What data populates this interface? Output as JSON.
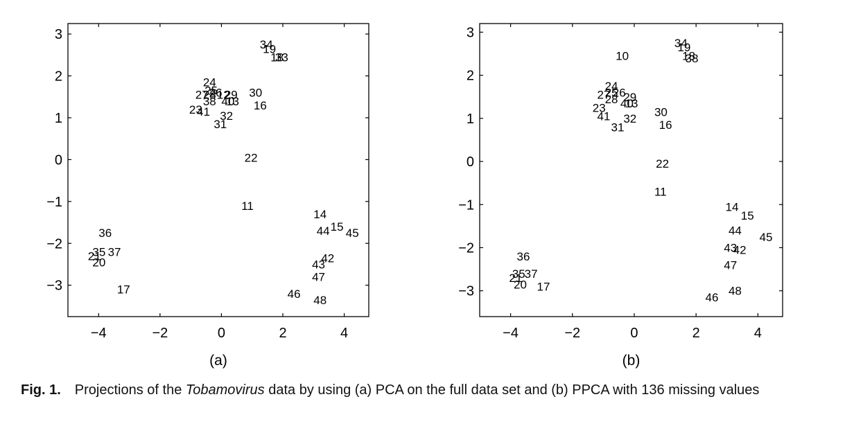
{
  "caption": {
    "label": "Fig. 1.",
    "text_before": "Projections of the ",
    "text_italic": "Tobamovirus",
    "text_after": " data by using (a) PCA on the full data set and (b) PPCA with 136 missing values"
  },
  "chart_data": [
    {
      "type": "scatter",
      "panel_label": "(a)",
      "xlim": [
        -5,
        4.8
      ],
      "ylim": [
        -3.75,
        3.25
      ],
      "xticks": [
        -4,
        -2,
        0,
        2,
        4
      ],
      "yticks": [
        -3,
        -2,
        -1,
        0,
        1,
        2,
        3
      ],
      "xtick_labels": [
        "−4",
        "−2",
        "0",
        "2",
        "4"
      ],
      "ytick_labels": [
        "−3",
        "−2",
        "−1",
        "0",
        "1",
        "2",
        "3"
      ],
      "grid": false,
      "marker": "text-label",
      "points": [
        {
          "label": "34",
          "x": 1.25,
          "y": 2.75
        },
        {
          "label": "19",
          "x": 1.35,
          "y": 2.65
        },
        {
          "label": "18",
          "x": 1.6,
          "y": 2.45
        },
        {
          "label": "33",
          "x": 1.75,
          "y": 2.45
        },
        {
          "label": "24",
          "x": -0.6,
          "y": 1.85
        },
        {
          "label": "25",
          "x": -0.55,
          "y": 1.65
        },
        {
          "label": "26",
          "x": -0.4,
          "y": 1.6
        },
        {
          "label": "27",
          "x": -0.85,
          "y": 1.55
        },
        {
          "label": "28",
          "x": -0.6,
          "y": 1.55
        },
        {
          "label": "12",
          "x": -0.15,
          "y": 1.55
        },
        {
          "label": "29",
          "x": 0.1,
          "y": 1.55
        },
        {
          "label": "38",
          "x": -0.6,
          "y": 1.4
        },
        {
          "label": "40",
          "x": 0.0,
          "y": 1.4
        },
        {
          "label": "13",
          "x": 0.15,
          "y": 1.4
        },
        {
          "label": "30",
          "x": 0.9,
          "y": 1.6
        },
        {
          "label": "16",
          "x": 1.05,
          "y": 1.3
        },
        {
          "label": "23",
          "x": -1.05,
          "y": 1.2
        },
        {
          "label": "41",
          "x": -0.8,
          "y": 1.15
        },
        {
          "label": "32",
          "x": -0.05,
          "y": 1.05
        },
        {
          "label": "31",
          "x": -0.25,
          "y": 0.85
        },
        {
          "label": "22",
          "x": 0.75,
          "y": 0.05
        },
        {
          "label": "11",
          "x": 0.65,
          "y": -1.1
        },
        {
          "label": "14",
          "x": 3.0,
          "y": -1.3
        },
        {
          "label": "44",
          "x": 3.1,
          "y": -1.7
        },
        {
          "label": "15",
          "x": 3.55,
          "y": -1.6
        },
        {
          "label": "45",
          "x": 4.05,
          "y": -1.75
        },
        {
          "label": "42",
          "x": 3.25,
          "y": -2.35
        },
        {
          "label": "43",
          "x": 2.95,
          "y": -2.5
        },
        {
          "label": "47",
          "x": 2.95,
          "y": -2.8
        },
        {
          "label": "46",
          "x": 2.15,
          "y": -3.2
        },
        {
          "label": "48",
          "x": 3.0,
          "y": -3.35
        },
        {
          "label": "36",
          "x": -4.0,
          "y": -1.75
        },
        {
          "label": "35",
          "x": -4.2,
          "y": -2.2
        },
        {
          "label": "37",
          "x": -3.7,
          "y": -2.2
        },
        {
          "label": "21",
          "x": -4.35,
          "y": -2.3
        },
        {
          "label": "20",
          "x": -4.2,
          "y": -2.45
        },
        {
          "label": "17",
          "x": -3.4,
          "y": -3.1
        }
      ]
    },
    {
      "type": "scatter",
      "panel_label": "(b)",
      "xlim": [
        -5,
        4.8
      ],
      "ylim": [
        -3.6,
        3.2
      ],
      "xticks": [
        -4,
        -2,
        0,
        2,
        4
      ],
      "yticks": [
        -3,
        -2,
        -1,
        0,
        1,
        2,
        3
      ],
      "xtick_labels": [
        "−4",
        "−2",
        "0",
        "2",
        "4"
      ],
      "ytick_labels": [
        "−3",
        "−2",
        "−1",
        "0",
        "1",
        "2",
        "3"
      ],
      "grid": false,
      "marker": "text-label",
      "points": [
        {
          "label": "10",
          "x": -0.6,
          "y": 2.45
        },
        {
          "label": "34",
          "x": 1.3,
          "y": 2.75
        },
        {
          "label": "19",
          "x": 1.4,
          "y": 2.65
        },
        {
          "label": "18",
          "x": 1.55,
          "y": 2.45
        },
        {
          "label": "38",
          "x": 1.65,
          "y": 2.4
        },
        {
          "label": "24",
          "x": -0.95,
          "y": 1.75
        },
        {
          "label": "25",
          "x": -0.95,
          "y": 1.6
        },
        {
          "label": "26",
          "x": -0.7,
          "y": 1.6
        },
        {
          "label": "27",
          "x": -1.2,
          "y": 1.55
        },
        {
          "label": "28",
          "x": -0.95,
          "y": 1.45
        },
        {
          "label": "29",
          "x": -0.35,
          "y": 1.5
        },
        {
          "label": "40",
          "x": -0.45,
          "y": 1.35
        },
        {
          "label": "13",
          "x": -0.3,
          "y": 1.35
        },
        {
          "label": "23",
          "x": -1.35,
          "y": 1.25
        },
        {
          "label": "41",
          "x": -1.2,
          "y": 1.05
        },
        {
          "label": "32",
          "x": -0.35,
          "y": 1.0
        },
        {
          "label": "31",
          "x": -0.75,
          "y": 0.8
        },
        {
          "label": "30",
          "x": 0.65,
          "y": 1.15
        },
        {
          "label": "16",
          "x": 0.8,
          "y": 0.85
        },
        {
          "label": "22",
          "x": 0.7,
          "y": -0.05
        },
        {
          "label": "11",
          "x": 0.65,
          "y": -0.7
        },
        {
          "label": "14",
          "x": 2.95,
          "y": -1.05
        },
        {
          "label": "15",
          "x": 3.45,
          "y": -1.25
        },
        {
          "label": "44",
          "x": 3.05,
          "y": -1.6
        },
        {
          "label": "45",
          "x": 4.05,
          "y": -1.75
        },
        {
          "label": "43",
          "x": 2.9,
          "y": -2.0
        },
        {
          "label": "42",
          "x": 3.2,
          "y": -2.05
        },
        {
          "label": "47",
          "x": 2.9,
          "y": -2.4
        },
        {
          "label": "48",
          "x": 3.05,
          "y": -3.0
        },
        {
          "label": "46",
          "x": 2.3,
          "y": -3.15
        },
        {
          "label": "36",
          "x": -3.8,
          "y": -2.2
        },
        {
          "label": "35",
          "x": -3.95,
          "y": -2.6
        },
        {
          "label": "37",
          "x": -3.55,
          "y": -2.6
        },
        {
          "label": "21",
          "x": -4.05,
          "y": -2.7
        },
        {
          "label": "20",
          "x": -3.9,
          "y": -2.85
        },
        {
          "label": "17",
          "x": -3.15,
          "y": -2.9
        }
      ]
    }
  ]
}
